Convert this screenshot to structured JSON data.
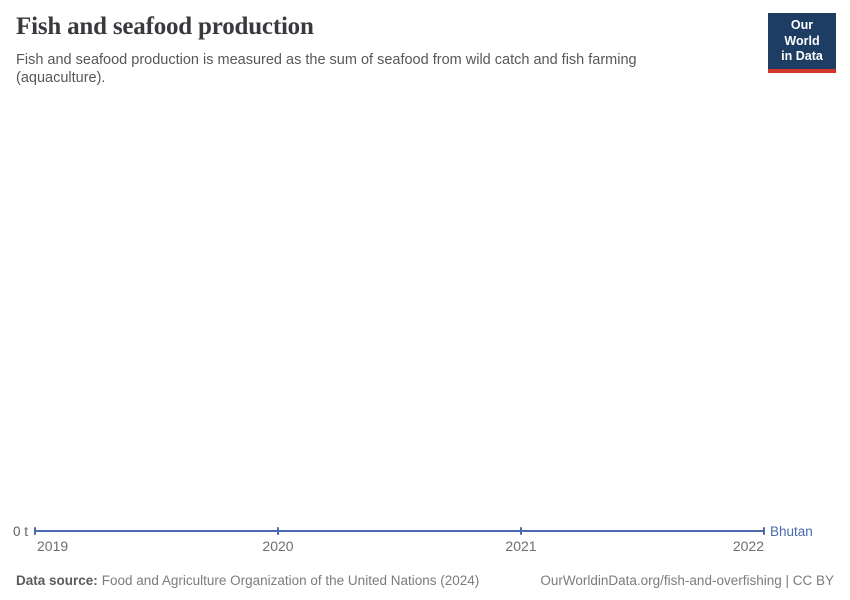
{
  "header": {
    "title": "Fish and seafood production",
    "subtitle": "Fish and seafood production is measured as the sum of seafood from wild catch and fish farming (aquaculture).",
    "logo": {
      "line1": "Our World",
      "line2": "in Data"
    }
  },
  "chart_data": {
    "type": "line",
    "title": "Fish and seafood production",
    "x": [
      "2019",
      "2020",
      "2021",
      "2022"
    ],
    "series": [
      {
        "name": "Bhutan",
        "values": [
          0,
          0,
          0,
          0
        ],
        "color": "#4b6bae"
      }
    ],
    "unit": "t",
    "xlabel": "",
    "ylabel": "",
    "y_tick_labels": [
      "0 t"
    ],
    "ylim": [
      0,
      0
    ],
    "grid": false,
    "legend_position": "end-of-line",
    "marker_style": "small-vertical-tick"
  },
  "footer": {
    "source_label": "Data source:",
    "source_text": "Food and Agriculture Organization of the United Nations (2024)",
    "citation": "OurWorldinData.org/fish-and-overfishing | CC BY"
  },
  "colors": {
    "series_line": "#4b6bae",
    "logo_background": "#1d3d63",
    "logo_underline": "#d4352a",
    "title_text": "#383a3d",
    "subtitle_text": "#585858",
    "tick_text": "#6e6e6e",
    "footer_text": "#7c7c7c"
  }
}
